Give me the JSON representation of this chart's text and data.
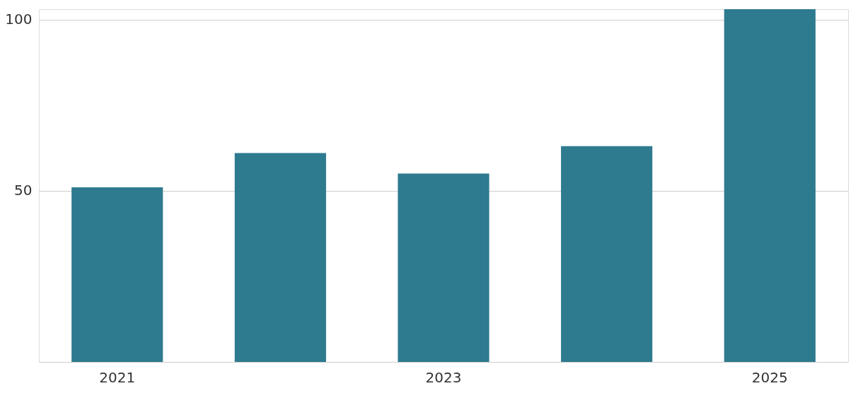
{
  "chart_data": {
    "type": "bar",
    "categories": [
      "2021",
      null,
      "2023",
      null,
      "2025"
    ],
    "values": [
      51,
      61,
      55,
      63,
      103
    ],
    "color": "#2e7a8f",
    "ylim": [
      0,
      103
    ],
    "yticks": [
      {
        "value": 0,
        "label": null
      },
      50,
      100
    ],
    "grid": "y"
  }
}
